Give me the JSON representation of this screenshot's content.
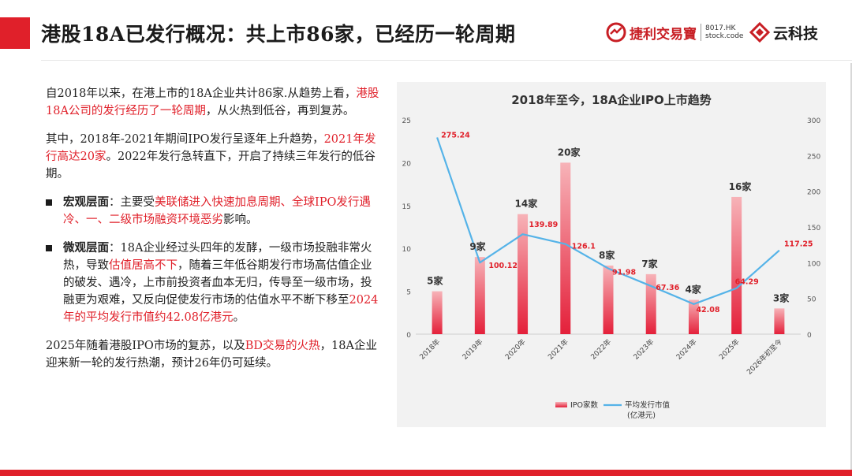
{
  "header": {
    "title": "港股18A已发行概况：共上市86家，已经历一轮周期",
    "logo_left_name": "捷利交易寶",
    "logo_left_code1": "8017.HK",
    "logo_left_code2": "stock.code",
    "logo_right_name": "云科技"
  },
  "text": {
    "p1_a": "自2018年以来，在港上市的18A企业共计86家.从趋势上看，",
    "p1_red": "港股18A公司的发行经历了一轮周期",
    "p1_b": "，从火热到低谷，再到复苏。",
    "p2_a": "其中，2018年-2021年期间IPO发行呈逐年上升趋势，",
    "p2_red": "2021年发行高达20家",
    "p2_b": "。2022年发行急转直下，开启了持续三年发行的低谷期。",
    "b1_label": "宏观层面",
    "b1_a": "：主要受",
    "b1_red": "美联储进入快速加息周期、全球IPO发行遇冷、一、二级市场融资环境恶劣",
    "b1_b": "影响。",
    "b2_label": "微观层面",
    "b2_a": "：18A企业经过头四年的发酵，一级市场投融非常火热，导致",
    "b2_red1": "估值居高不下",
    "b2_b": "，随着三年低谷期发行市场高估值企业的破发、遇冷，上市前投资者血本无归，传导至一级市场，投融更为艰难，又反向促使发行市场的估值水平不断下移至",
    "b2_red2": "2024年的平均发行市值约42.08亿港元",
    "b2_c": "。",
    "p3_a": "2025年随着港股IPO市场的复苏，以及",
    "p3_red": "BD交易的火热",
    "p3_b": "，18A企业迎来新一轮的发行热潮，预计26年仍可延续。"
  },
  "chart_data": {
    "type": "bar+line",
    "title": "2018年至今，18A企业IPO上市趋势",
    "categories": [
      "2018年",
      "2019年",
      "2020年",
      "2021年",
      "2022年",
      "2023年",
      "2024年",
      "2025年",
      "2026年初至今"
    ],
    "series": [
      {
        "name": "IPO家数",
        "type": "bar",
        "axis": "left",
        "values": [
          5,
          9,
          14,
          20,
          8,
          7,
          4,
          16,
          3
        ],
        "labels": [
          "5家",
          "9家",
          "14家",
          "20家",
          "8家",
          "7家",
          "4家",
          "16家",
          "3家"
        ]
      },
      {
        "name": "平均发行市值(亿港元)",
        "type": "line",
        "axis": "right",
        "values": [
          275.24,
          100.12,
          139.89,
          126.1,
          91.98,
          67.36,
          42.08,
          64.29,
          117.25
        ],
        "labels": [
          "275.24",
          "100.12",
          "139.89",
          "126.1",
          "91.98",
          "67.36",
          "42.08",
          "64.29",
          "117.25"
        ]
      }
    ],
    "y_left": {
      "min": 0,
      "max": 25,
      "ticks": [
        "0",
        "5",
        "10",
        "15",
        "20",
        "25"
      ]
    },
    "y_right": {
      "min": 0,
      "max": 300,
      "ticks": [
        "0",
        "50",
        "100",
        "150",
        "200",
        "250",
        "300"
      ]
    },
    "legend": {
      "bar": "IPO家数",
      "line1": "平均发行市值",
      "line2": "(亿港元)"
    },
    "colors": {
      "bar_top": "#f7b3b8",
      "bar_bottom": "#e4203a",
      "line": "#55b3e8",
      "value_label": "#e0202a",
      "count_label": "#333333"
    }
  }
}
